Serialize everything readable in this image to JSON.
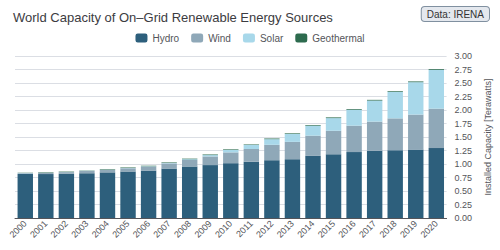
{
  "chart_data": {
    "type": "bar",
    "stacked": true,
    "title": "World Capacity of On–Grid Renewable Energy Sources",
    "annotations": [
      "Data: IRENA"
    ],
    "ylabel": "Installed Capacity [Terawatts]",
    "categories": [
      "2000",
      "2001",
      "2002",
      "2003",
      "2004",
      "2005",
      "2006",
      "2007",
      "2008",
      "2009",
      "2010",
      "2011",
      "2012",
      "2013",
      "2014",
      "2015",
      "2016",
      "2017",
      "2018",
      "2019",
      "2020"
    ],
    "series": [
      {
        "name": "Hydro",
        "color": "#2d5f7c",
        "values": [
          0.813,
          0.814,
          0.818,
          0.831,
          0.845,
          0.862,
          0.878,
          0.916,
          0.952,
          0.98,
          1.015,
          1.04,
          1.07,
          1.09,
          1.15,
          1.18,
          1.22,
          1.245,
          1.255,
          1.27,
          1.295
        ]
      },
      {
        "name": "Wind",
        "color": "#8fa8b8",
        "values": [
          0.018,
          0.024,
          0.031,
          0.04,
          0.048,
          0.06,
          0.075,
          0.095,
          0.122,
          0.16,
          0.2,
          0.24,
          0.285,
          0.32,
          0.375,
          0.435,
          0.49,
          0.54,
          0.59,
          0.645,
          0.73
        ]
      },
      {
        "name": "Solar",
        "color": "#a8d8ea",
        "values": [
          0.001,
          0.001,
          0.002,
          0.002,
          0.003,
          0.005,
          0.006,
          0.008,
          0.015,
          0.025,
          0.045,
          0.07,
          0.105,
          0.145,
          0.185,
          0.235,
          0.295,
          0.39,
          0.49,
          0.6,
          0.72
        ]
      },
      {
        "name": "Geothermal",
        "color": "#2d6b4e",
        "values": [
          0.008,
          0.008,
          0.008,
          0.008,
          0.009,
          0.009,
          0.009,
          0.01,
          0.01,
          0.011,
          0.011,
          0.011,
          0.012,
          0.012,
          0.012,
          0.013,
          0.013,
          0.013,
          0.013,
          0.014,
          0.014
        ]
      }
    ],
    "ylim": [
      0,
      3.0
    ],
    "yticks": [
      {
        "value": 0.0,
        "label": "0.00"
      },
      {
        "value": 0.25,
        "label": "0.25"
      },
      {
        "value": 0.5,
        "label": "0.50"
      },
      {
        "value": 0.75,
        "label": "0.75"
      },
      {
        "value": 1.0,
        "label": "1.00"
      },
      {
        "value": 1.25,
        "label": "1.25"
      },
      {
        "value": 1.5,
        "label": "1.50"
      },
      {
        "value": 1.75,
        "label": "1.75"
      },
      {
        "value": 2.0,
        "label": "2.00"
      },
      {
        "value": 2.25,
        "label": "2.25"
      },
      {
        "value": 2.5,
        "label": "2.50"
      },
      {
        "value": 2.75,
        "label": "2.75"
      },
      {
        "value": 3.0,
        "label": "3.00"
      }
    ],
    "grid": true,
    "legend": "top"
  }
}
